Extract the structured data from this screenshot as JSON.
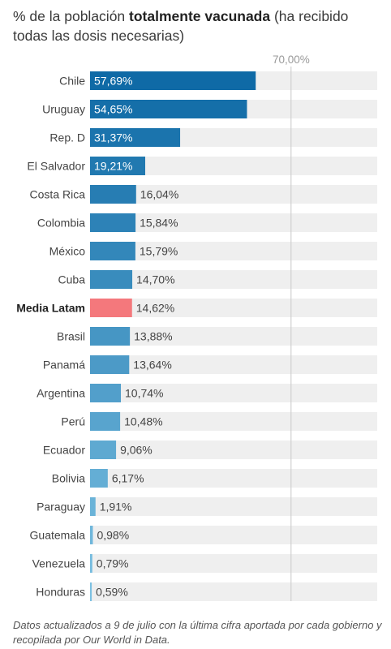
{
  "title": {
    "prefix": "% de la población ",
    "emphasis": "totalmente vacunada",
    "suffix": " (ha recibido todas las dosis necesarias)"
  },
  "footnote": "Datos actualizados a 9 de julio con la última cifra aportada por cada gobierno y recopilada por Our World in Data.",
  "colors": {
    "track": "#efefef",
    "highlight": "#f4787c",
    "dark": "#0f6aa6",
    "light": "#7cc1e2",
    "reference_line": "#c8c8c8",
    "label_inside": "#ffffff",
    "label_outside": "#444444"
  },
  "chart_data": {
    "type": "bar",
    "orientation": "horizontal",
    "xlim": [
      0,
      100
    ],
    "reference_line": {
      "value": 70,
      "label": "70,00%"
    },
    "highlight_category": "Media Latam",
    "categories": [
      "Chile",
      "Uruguay",
      "Rep. D",
      "El Salvador",
      "Costa Rica",
      "Colombia",
      "México",
      "Cuba",
      "Media Latam",
      "Brasil",
      "Panamá",
      "Argentina",
      "Perú",
      "Ecuador",
      "Bolivia",
      "Paraguay",
      "Guatemala",
      "Venezuela",
      "Honduras"
    ],
    "values": [
      57.69,
      54.65,
      31.37,
      19.21,
      16.04,
      15.84,
      15.79,
      14.7,
      14.62,
      13.88,
      13.64,
      10.74,
      10.48,
      9.06,
      6.17,
      1.91,
      0.98,
      0.79,
      0.59
    ],
    "value_labels": [
      "57,69%",
      "54,65%",
      "31,37%",
      "19,21%",
      "16,04%",
      "15,84%",
      "15,79%",
      "14,70%",
      "14,62%",
      "13,88%",
      "13,64%",
      "10,74%",
      "10,48%",
      "9,06%",
      "6,17%",
      "1,91%",
      "0,98%",
      "0,79%",
      "0,59%"
    ]
  }
}
